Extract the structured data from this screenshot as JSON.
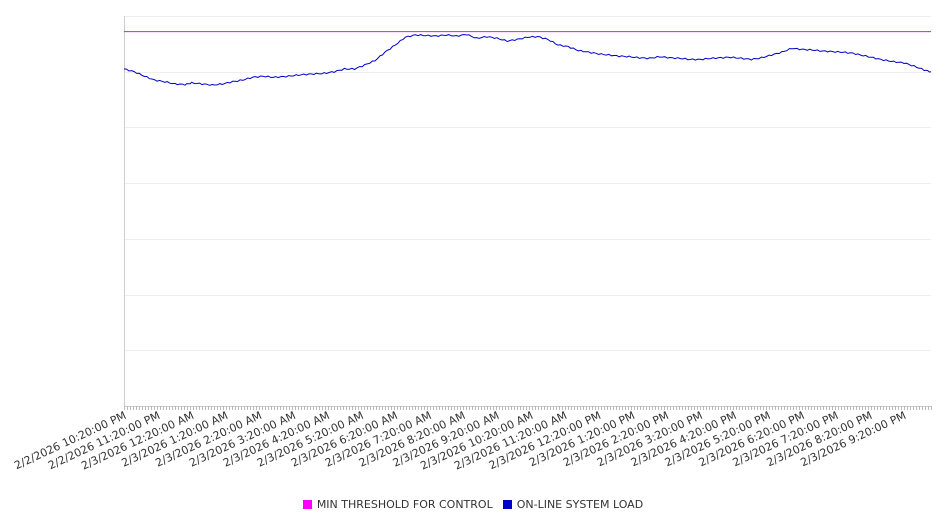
{
  "chart_data": {
    "type": "line",
    "title": "",
    "xlabel": "",
    "ylabel": "",
    "grid": true,
    "legend_position": "bottom",
    "x_tick_labels": [
      "2/2/2026 10:20:00 PM",
      "2/2/2026 11:20:00 PM",
      "2/3/2026 12:20:00 AM",
      "2/3/2026 1:20:00 AM",
      "2/3/2026 2:20:00 AM",
      "2/3/2026 3:20:00 AM",
      "2/3/2026 4:20:00 AM",
      "2/3/2026 5:20:00 AM",
      "2/3/2026 6:20:00 AM",
      "2/3/2026 7:20:00 AM",
      "2/3/2026 8:20:00 AM",
      "2/3/2026 9:20:00 AM",
      "2/3/2026 10:20:00 AM",
      "2/3/2026 11:20:00 AM",
      "2/3/2026 12:20:00 PM",
      "2/3/2026 1:20:00 PM",
      "2/3/2026 2:20:00 PM",
      "2/3/2026 3:20:00 PM",
      "2/3/2026 4:20:00 PM",
      "2/3/2026 5:20:00 PM",
      "2/3/2026 6:20:00 PM",
      "2/3/2026 7:20:00 PM",
      "2/3/2026 8:20:00 PM",
      "2/3/2026 9:20:00 PM"
    ],
    "ylim": [
      0,
      7
    ],
    "series": [
      {
        "name": "MIN THRESHOLD FOR CONTROL",
        "color": "#ff00ff",
        "points": [
          [
            0,
            6.72
          ],
          [
            23.8,
            6.72
          ]
        ]
      },
      {
        "name": "ON-LINE SYSTEM LOAD",
        "color": "#0000cc",
        "points": [
          [
            0,
            6.05
          ],
          [
            0.3,
            6.0
          ],
          [
            0.6,
            5.92
          ],
          [
            0.9,
            5.85
          ],
          [
            1.2,
            5.82
          ],
          [
            1.5,
            5.78
          ],
          [
            1.8,
            5.77
          ],
          [
            2.0,
            5.8
          ],
          [
            2.3,
            5.78
          ],
          [
            2.6,
            5.76
          ],
          [
            2.9,
            5.78
          ],
          [
            3.2,
            5.82
          ],
          [
            3.5,
            5.85
          ],
          [
            3.8,
            5.9
          ],
          [
            4.1,
            5.92
          ],
          [
            4.4,
            5.9
          ],
          [
            4.7,
            5.91
          ],
          [
            5.0,
            5.93
          ],
          [
            5.3,
            5.95
          ],
          [
            5.6,
            5.96
          ],
          [
            5.9,
            5.97
          ],
          [
            6.2,
            6.0
          ],
          [
            6.5,
            6.05
          ],
          [
            6.8,
            6.05
          ],
          [
            7.1,
            6.12
          ],
          [
            7.4,
            6.2
          ],
          [
            7.7,
            6.35
          ],
          [
            8.0,
            6.48
          ],
          [
            8.3,
            6.62
          ],
          [
            8.6,
            6.66
          ],
          [
            8.9,
            6.65
          ],
          [
            9.2,
            6.64
          ],
          [
            9.5,
            6.66
          ],
          [
            9.8,
            6.64
          ],
          [
            10.1,
            6.67
          ],
          [
            10.4,
            6.6
          ],
          [
            10.7,
            6.63
          ],
          [
            11.0,
            6.6
          ],
          [
            11.3,
            6.55
          ],
          [
            11.6,
            6.58
          ],
          [
            11.9,
            6.62
          ],
          [
            12.2,
            6.63
          ],
          [
            12.5,
            6.58
          ],
          [
            12.8,
            6.48
          ],
          [
            13.1,
            6.45
          ],
          [
            13.4,
            6.38
          ],
          [
            13.7,
            6.35
          ],
          [
            14.0,
            6.32
          ],
          [
            14.3,
            6.3
          ],
          [
            14.6,
            6.28
          ],
          [
            14.9,
            6.27
          ],
          [
            15.2,
            6.25
          ],
          [
            15.5,
            6.24
          ],
          [
            15.8,
            6.27
          ],
          [
            16.1,
            6.25
          ],
          [
            16.4,
            6.24
          ],
          [
            16.7,
            6.22
          ],
          [
            17.0,
            6.22
          ],
          [
            17.3,
            6.24
          ],
          [
            17.6,
            6.25
          ],
          [
            17.9,
            6.26
          ],
          [
            18.2,
            6.24
          ],
          [
            18.5,
            6.22
          ],
          [
            18.8,
            6.25
          ],
          [
            19.1,
            6.3
          ],
          [
            19.4,
            6.35
          ],
          [
            19.7,
            6.42
          ],
          [
            20.0,
            6.4
          ],
          [
            20.3,
            6.39
          ],
          [
            20.6,
            6.37
          ],
          [
            20.9,
            6.36
          ],
          [
            21.2,
            6.35
          ],
          [
            21.5,
            6.33
          ],
          [
            21.8,
            6.29
          ],
          [
            22.1,
            6.25
          ],
          [
            22.4,
            6.21
          ],
          [
            22.7,
            6.18
          ],
          [
            23.0,
            6.16
          ],
          [
            23.3,
            6.1
          ],
          [
            23.6,
            6.03
          ],
          [
            23.8,
            6.0
          ]
        ]
      }
    ]
  },
  "legend": {
    "threshold_label": "MIN THRESHOLD FOR CONTROL",
    "load_label": "ON-LINE SYSTEM LOAD"
  }
}
